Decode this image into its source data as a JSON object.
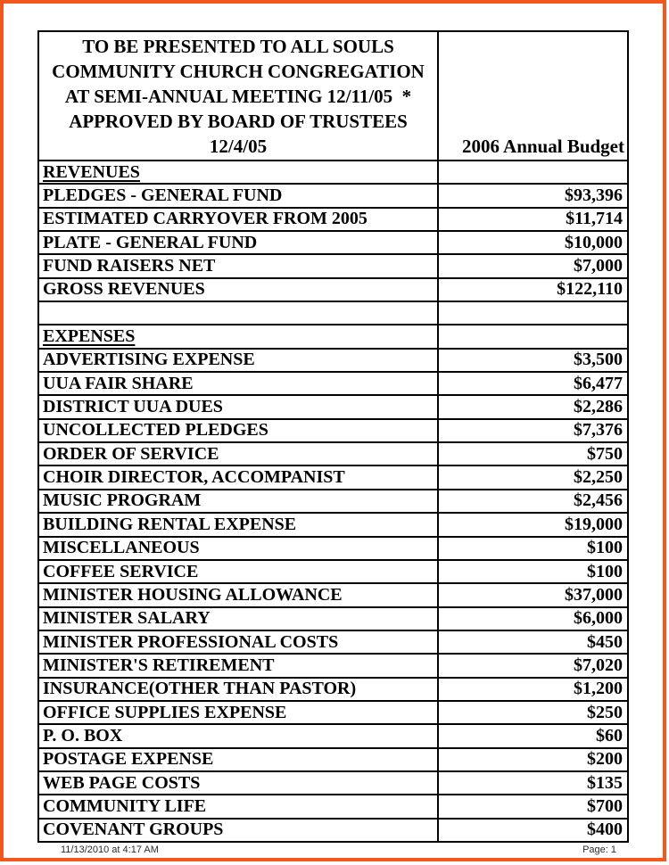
{
  "frame": {
    "border_color": "#f2581d"
  },
  "table": {
    "header": {
      "title_lines": [
        "TO BE PRESENTED TO ALL SOULS",
        "COMMUNITY CHURCH CONGREGATION",
        "AT SEMI-ANNUAL MEETING 12/11/05  *",
        "APPROVED BY BOARD OF TRUSTEES",
        "12/4/05"
      ],
      "budget_column_label": "2006 Annual Budget"
    },
    "rows": [
      {
        "type": "section",
        "label": "REVENUES",
        "amount": ""
      },
      {
        "type": "item",
        "label": "PLEDGES - GENERAL FUND",
        "amount": "$93,396"
      },
      {
        "type": "item",
        "label": "ESTIMATED CARRYOVER FROM 2005",
        "amount": "$11,714"
      },
      {
        "type": "item",
        "label": "PLATE - GENERAL FUND",
        "amount": "$10,000"
      },
      {
        "type": "item",
        "label": "FUND RAISERS NET",
        "amount": "$7,000"
      },
      {
        "type": "item",
        "label": "GROSS REVENUES",
        "amount": "$122,110"
      },
      {
        "type": "blank",
        "label": "",
        "amount": ""
      },
      {
        "type": "section",
        "label": "EXPENSES",
        "amount": ""
      },
      {
        "type": "item",
        "label": "ADVERTISING EXPENSE",
        "amount": "$3,500"
      },
      {
        "type": "item",
        "label": "UUA FAIR SHARE",
        "amount": "$6,477"
      },
      {
        "type": "item",
        "label": "DISTRICT UUA DUES",
        "amount": "$2,286"
      },
      {
        "type": "item",
        "label": "UNCOLLECTED PLEDGES",
        "amount": "$7,376"
      },
      {
        "type": "item",
        "label": "ORDER OF SERVICE",
        "amount": "$750"
      },
      {
        "type": "item",
        "label": "CHOIR DIRECTOR, ACCOMPANIST",
        "amount": "$2,250"
      },
      {
        "type": "item",
        "label": "MUSIC PROGRAM",
        "amount": "$2,456"
      },
      {
        "type": "item",
        "label": "BUILDING RENTAL EXPENSE",
        "amount": "$19,000"
      },
      {
        "type": "item",
        "label": "MISCELLANEOUS",
        "amount": "$100"
      },
      {
        "type": "item",
        "label": "COFFEE SERVICE",
        "amount": "$100"
      },
      {
        "type": "item",
        "label": "MINISTER HOUSING ALLOWANCE",
        "amount": "$37,000"
      },
      {
        "type": "item",
        "label": "MINISTER SALARY",
        "amount": "$6,000"
      },
      {
        "type": "item",
        "label": "MINISTER PROFESSIONAL COSTS",
        "amount": "$450"
      },
      {
        "type": "item",
        "label": "MINISTER'S RETIREMENT",
        "amount": "$7,020"
      },
      {
        "type": "item",
        "label": "INSURANCE(OTHER THAN PASTOR)",
        "amount": "$1,200"
      },
      {
        "type": "item",
        "label": "OFFICE SUPPLIES EXPENSE",
        "amount": "$250"
      },
      {
        "type": "item",
        "label": "P. O. BOX",
        "amount": "$60"
      },
      {
        "type": "item",
        "label": "POSTAGE EXPENSE",
        "amount": "$200"
      },
      {
        "type": "item",
        "label": "WEB PAGE COSTS",
        "amount": "$135"
      },
      {
        "type": "item",
        "label": "COMMUNITY LIFE",
        "amount": "$700"
      },
      {
        "type": "item",
        "label": "COVENANT GROUPS",
        "amount": "$400"
      }
    ]
  },
  "footer": {
    "timestamp": "11/13/2010 at 4:17 AM",
    "page": "Page: 1"
  }
}
